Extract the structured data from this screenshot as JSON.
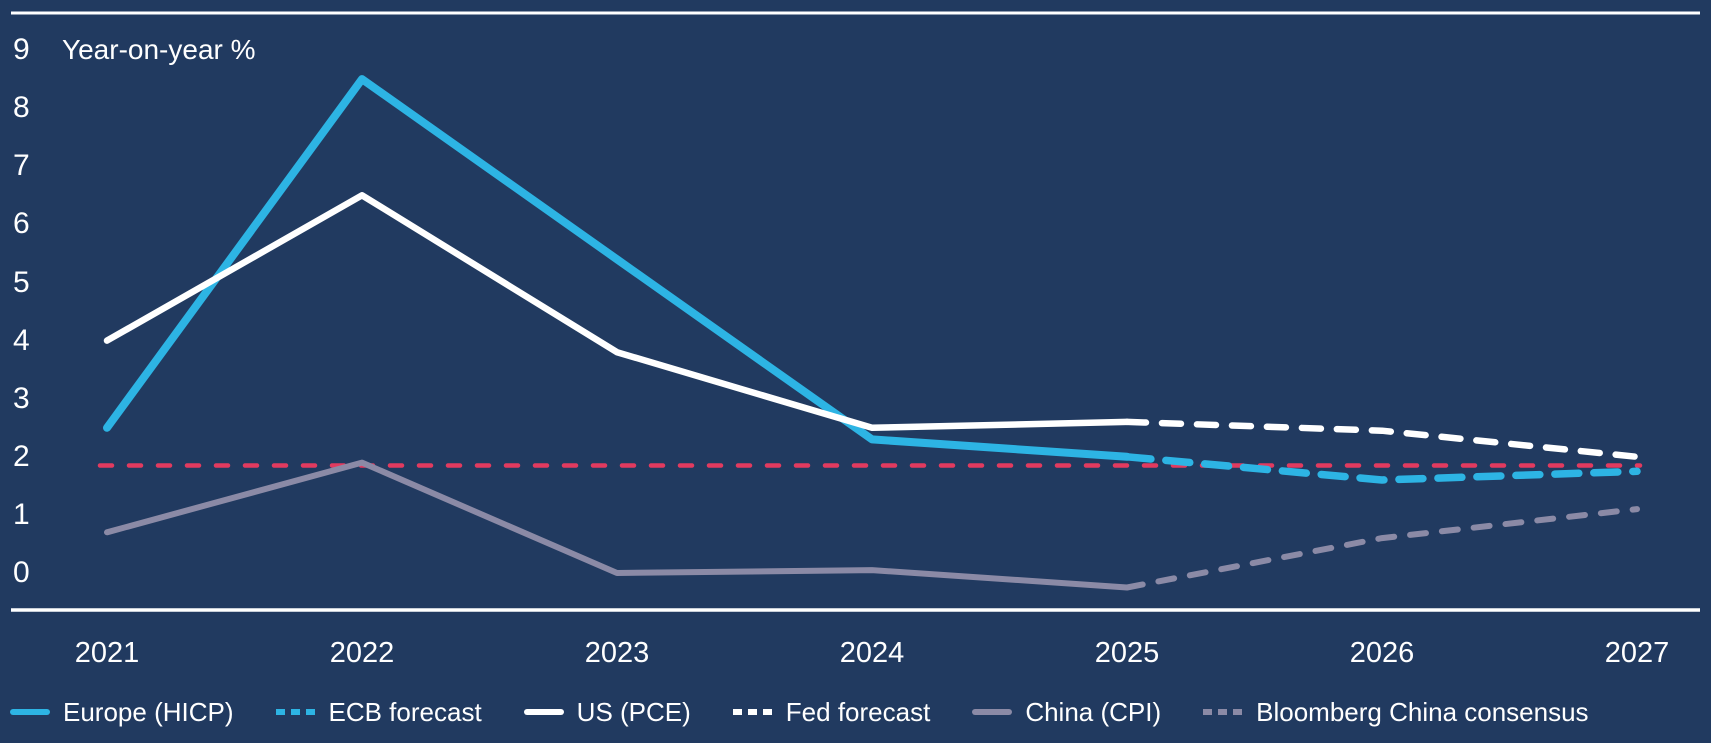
{
  "page": {
    "background_color": "#213A60",
    "text_color": "#FFFFFF"
  },
  "chart": {
    "unit_label": "Year-on-year %",
    "y_ticks": [
      9,
      8,
      7,
      6,
      5,
      4,
      3,
      2,
      1,
      0
    ],
    "x_ticks": [
      2021,
      2022,
      2023,
      2024,
      2025,
      2026,
      2027
    ],
    "colors": {
      "europe_cyan": "#2DB4E4",
      "us_white": "#FFFFFF",
      "china_gray": "#8B8AA6",
      "target_red": "#E23A5F",
      "axis_rule": "#FFFFFF"
    }
  },
  "chart_data": {
    "type": "line",
    "title": "",
    "ylabel": "Year-on-year %",
    "xlabel": "",
    "x_range": [
      2021,
      2027
    ],
    "ylim": [
      -0.5,
      9.5
    ],
    "y_axis_ticks": [
      0,
      1,
      2,
      3,
      4,
      5,
      6,
      7,
      8,
      9
    ],
    "grid": false,
    "legend_position": "bottom",
    "series": [
      {
        "name": "Europe (HICP)",
        "color": "#2DB4E4",
        "style": "solid",
        "x": [
          2021,
          2022,
          2023,
          2024,
          2025
        ],
        "values": [
          2.5,
          8.5,
          5.4,
          2.3,
          2.0
        ]
      },
      {
        "name": "ECB forecast",
        "color": "#2DB4E4",
        "style": "dashed",
        "x": [
          2025,
          2026,
          2027
        ],
        "values": [
          2.0,
          1.6,
          1.75
        ]
      },
      {
        "name": "US (PCE)",
        "color": "#FFFFFF",
        "style": "solid",
        "x": [
          2021,
          2022,
          2023,
          2024,
          2025
        ],
        "values": [
          4.0,
          6.5,
          3.8,
          2.5,
          2.6
        ]
      },
      {
        "name": "Fed forecast",
        "color": "#FFFFFF",
        "style": "dashed",
        "x": [
          2025,
          2026,
          2027
        ],
        "values": [
          2.6,
          2.45,
          2.0
        ]
      },
      {
        "name": "China (CPI)",
        "color": "#8B8AA6",
        "style": "solid",
        "x": [
          2021,
          2022,
          2023,
          2024,
          2025
        ],
        "values": [
          0.7,
          1.9,
          0.0,
          0.05,
          -0.25
        ]
      },
      {
        "name": "Bloomberg China consensus",
        "color": "#8B8AA6",
        "style": "dashed",
        "x": [
          2025,
          2026,
          2027
        ],
        "values": [
          -0.25,
          0.6,
          1.1
        ]
      }
    ],
    "reference_line": {
      "value": 1.85,
      "color": "#E23A5F",
      "style": "dashed",
      "x_range": [
        2021,
        2027
      ]
    }
  },
  "legend": {
    "items": [
      {
        "label": "Europe (HICP)",
        "color": "#2DB4E4",
        "dashed": false
      },
      {
        "label": "ECB forecast",
        "color": "#2DB4E4",
        "dashed": true
      },
      {
        "label": "US (PCE)",
        "color": "#FFFFFF",
        "dashed": false
      },
      {
        "label": "Fed forecast",
        "color": "#FFFFFF",
        "dashed": true
      },
      {
        "label": "China (CPI)",
        "color": "#8B8AA6",
        "dashed": false
      },
      {
        "label": "Bloomberg China consensus",
        "color": "#8B8AA6",
        "dashed": true
      }
    ]
  }
}
